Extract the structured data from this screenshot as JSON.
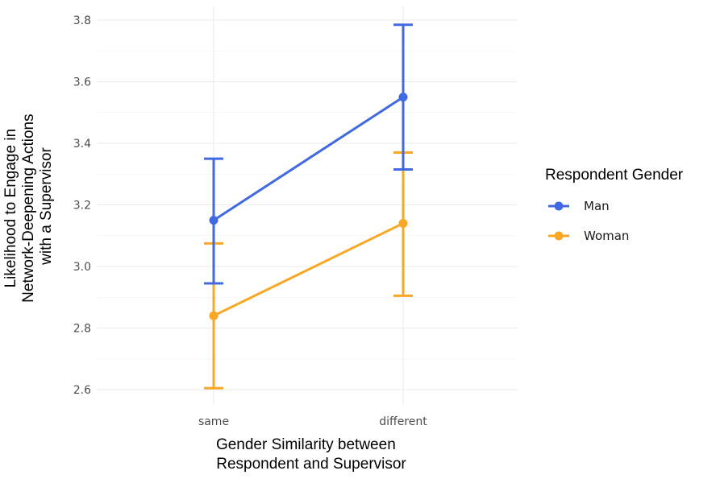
{
  "chart_data": {
    "type": "line",
    "categories": [
      "same",
      "different"
    ],
    "series": [
      {
        "name": "Man",
        "color": "#4169E1",
        "values": [
          3.15,
          3.55
        ],
        "lower": [
          2.945,
          3.315
        ],
        "upper": [
          3.35,
          3.785
        ]
      },
      {
        "name": "Woman",
        "color": "#F9A825",
        "values": [
          2.84,
          3.14
        ],
        "lower": [
          2.605,
          2.905
        ],
        "upper": [
          3.075,
          3.37
        ]
      }
    ],
    "xlabel": [
      "Gender Similarity between",
      "Respondent and Supervisor"
    ],
    "ylabel": [
      "Likelihood to Engage in",
      "Network-Deepening Actions",
      "with a Supervisor"
    ],
    "ylim": [
      2.6,
      3.8
    ],
    "yticks": [
      "2.6",
      "2.8",
      "3.0",
      "3.2",
      "3.4",
      "3.6",
      "3.8"
    ],
    "legend_title": "Respondent Gender",
    "legend_position": "right",
    "grid": true
  }
}
